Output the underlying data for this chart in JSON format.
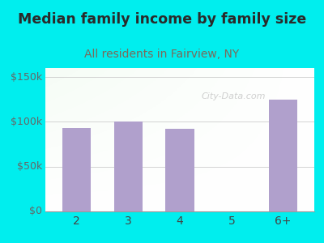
{
  "title": "Median family income by family size",
  "subtitle": "All residents in Fairview, NY",
  "title_color": "#2a2a2a",
  "subtitle_color": "#7a6a5a",
  "categories": [
    "2",
    "3",
    "4",
    "5",
    "6+"
  ],
  "values": [
    93000,
    100000,
    92000,
    0,
    125000
  ],
  "bar_color": "#b0a0cc",
  "background_color": "#00EEEE",
  "yticks": [
    0,
    50000,
    100000,
    150000
  ],
  "ytick_labels": [
    "$0",
    "$50k",
    "$100k",
    "$150k"
  ],
  "ylim": [
    0,
    160000
  ],
  "title_fontsize": 12.5,
  "subtitle_fontsize": 10,
  "tick_fontsize": 9,
  "xtick_fontsize": 10,
  "watermark": "City-Data.com"
}
